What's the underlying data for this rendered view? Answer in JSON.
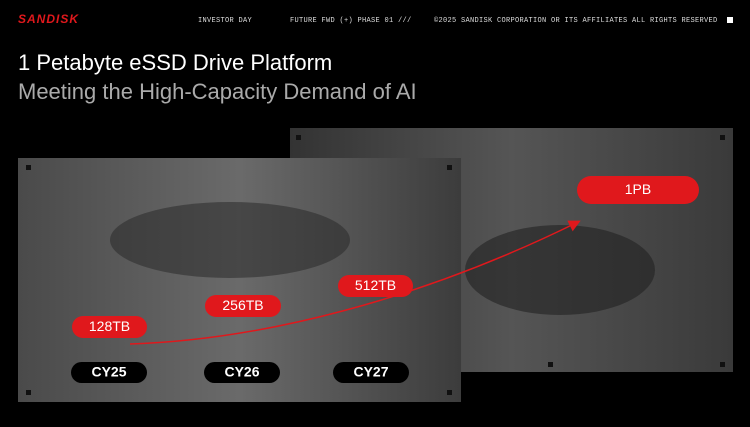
{
  "header": {
    "logo": "SANDISK",
    "event": "INVESTOR DAY",
    "theme": "FUTURE FWD (+) PHASE 01 ///",
    "copyright": "©2025 SANDISK CORPORATION OR ITS AFFILIATES ALL RIGHTS RESERVED"
  },
  "slide": {
    "title": "1 Petabyte eSSD Drive Platform",
    "subtitle": "Meeting the High-Capacity Demand of AI"
  },
  "capacities": [
    "128TB",
    "256TB",
    "512TB",
    "1PB"
  ],
  "years": [
    "CY25",
    "CY26",
    "CY27"
  ]
}
